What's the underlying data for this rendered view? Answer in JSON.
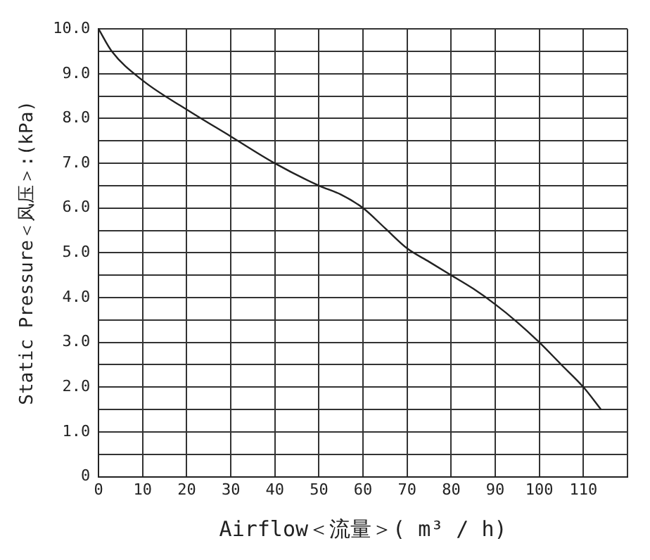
{
  "chart_data": {
    "type": "line",
    "xlabel": "Airflow＜流量＞( m³ / h)",
    "ylabel": "Static Pressure＜风压＞:(kPa)",
    "series": [
      {
        "color": "#222222",
        "x": [
          0,
          3,
          10,
          20,
          30,
          40,
          50,
          55,
          60,
          65,
          70,
          75,
          80,
          85,
          90,
          95,
          100,
          105,
          110,
          114
        ],
        "values": [
          10,
          9.5,
          8.85,
          8.2,
          7.6,
          7.0,
          6.5,
          6.3,
          6.0,
          5.55,
          5.1,
          4.8,
          4.5,
          4.2,
          3.85,
          3.45,
          3.0,
          2.5,
          2.0,
          1.5
        ]
      }
    ],
    "xlim": [
      0,
      120
    ],
    "xticks": [
      0,
      10,
      20,
      30,
      40,
      50,
      60,
      70,
      80,
      90,
      100,
      110,
      {
        "value": 120,
        "label": null
      }
    ],
    "ylim": [
      0,
      10
    ],
    "yticks": [
      0,
      {
        "value": 0.5,
        "label": null
      },
      {
        "value": 1,
        "label": "1.0"
      },
      {
        "value": 1.5,
        "label": null
      },
      {
        "value": 2,
        "label": "2.0"
      },
      {
        "value": 2.5,
        "label": null
      },
      {
        "value": 3,
        "label": "3.0"
      },
      {
        "value": 3.5,
        "label": null
      },
      {
        "value": 4,
        "label": "4.0"
      },
      {
        "value": 4.5,
        "label": null
      },
      {
        "value": 5,
        "label": "5.0"
      },
      {
        "value": 5.5,
        "label": null
      },
      {
        "value": 6,
        "label": "6.0"
      },
      {
        "value": 6.5,
        "label": null
      },
      {
        "value": 7,
        "label": "7.0"
      },
      {
        "value": 7.5,
        "label": null
      },
      {
        "value": 8,
        "label": "8.0"
      },
      {
        "value": 8.5,
        "label": null
      },
      {
        "value": 9,
        "label": "9.0"
      },
      {
        "value": 9.5,
        "label": null
      },
      {
        "value": 10,
        "label": "10.0"
      }
    ],
    "grid": true,
    "legend": false,
    "marker": "none",
    "line_style": "solid"
  }
}
